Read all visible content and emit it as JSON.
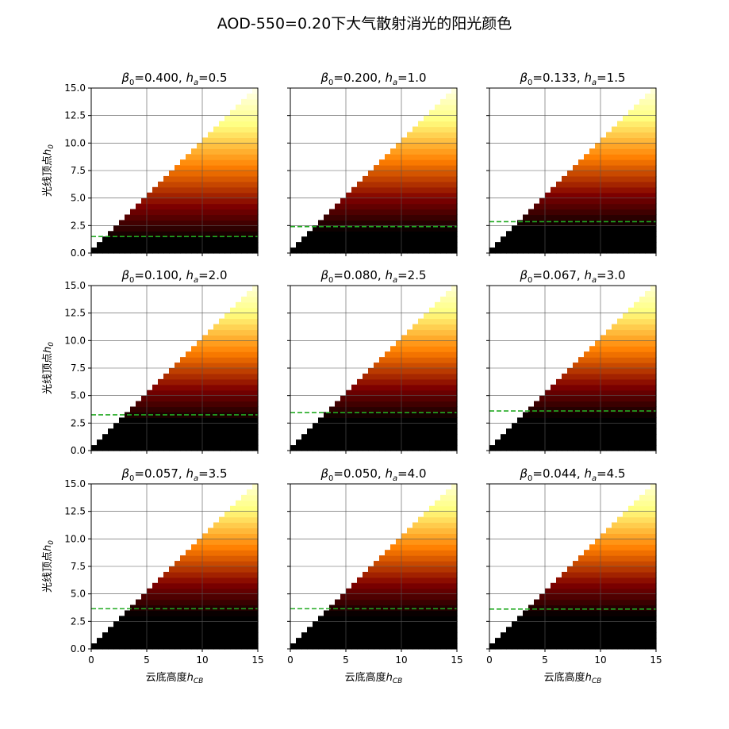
{
  "figure": {
    "title": "AOD-550=0.20下大气散射消光的阳光颜色"
  },
  "chart_data": [
    {
      "type": "heatmap",
      "title_beta": "0.400",
      "title_ha": "0.5",
      "ref_line_y": 1.5,
      "shade_scale": 0.5
    },
    {
      "type": "heatmap",
      "title_beta": "0.200",
      "title_ha": "1.0",
      "ref_line_y": 2.4,
      "shade_scale": 1.0
    },
    {
      "type": "heatmap",
      "title_beta": "0.133",
      "title_ha": "1.5",
      "ref_line_y": 2.85,
      "shade_scale": 1.5
    },
    {
      "type": "heatmap",
      "title_beta": "0.100",
      "title_ha": "2.0",
      "ref_line_y": 3.25,
      "shade_scale": 2.0
    },
    {
      "type": "heatmap",
      "title_beta": "0.080",
      "title_ha": "2.5",
      "ref_line_y": 3.45,
      "shade_scale": 2.5
    },
    {
      "type": "heatmap",
      "title_beta": "0.067",
      "title_ha": "3.0",
      "ref_line_y": 3.6,
      "shade_scale": 3.0
    },
    {
      "type": "heatmap",
      "title_beta": "0.057",
      "title_ha": "3.5",
      "ref_line_y": 3.65,
      "shade_scale": 3.5
    },
    {
      "type": "heatmap",
      "title_beta": "0.050",
      "title_ha": "4.0",
      "ref_line_y": 3.65,
      "shade_scale": 4.0
    },
    {
      "type": "heatmap",
      "title_beta": "0.044",
      "title_ha": "4.5",
      "ref_line_y": 3.62,
      "shade_scale": 4.5
    }
  ],
  "axes": {
    "xlim": [
      0,
      15
    ],
    "ylim": [
      0,
      15
    ],
    "xticks": [
      "0",
      "5",
      "10",
      "15"
    ],
    "xtick_values": [
      0,
      5,
      10,
      15
    ],
    "yticks": [
      "0.0",
      "2.5",
      "5.0",
      "7.5",
      "10.0",
      "12.5",
      "15.0"
    ],
    "ytick_values": [
      0,
      2.5,
      5,
      7.5,
      10,
      12.5,
      15
    ],
    "grid": true,
    "grid_x": [
      5,
      10
    ],
    "grid_y": [
      2.5,
      5,
      7.5,
      10,
      12.5
    ],
    "xlabel_text": "云底高度",
    "xlabel_symbol": "h",
    "xlabel_sub": "CB",
    "ylabel_text": "光线顶点",
    "ylabel_symbol": "h",
    "ylabel_sub": "0",
    "title_beta_symbol": "β",
    "title_beta_sub": "0",
    "title_ha_symbol": "h",
    "title_ha_sub": "a"
  },
  "colors": {
    "ref_line": "#22aa22",
    "grid": "#555555",
    "frame": "#000000"
  }
}
